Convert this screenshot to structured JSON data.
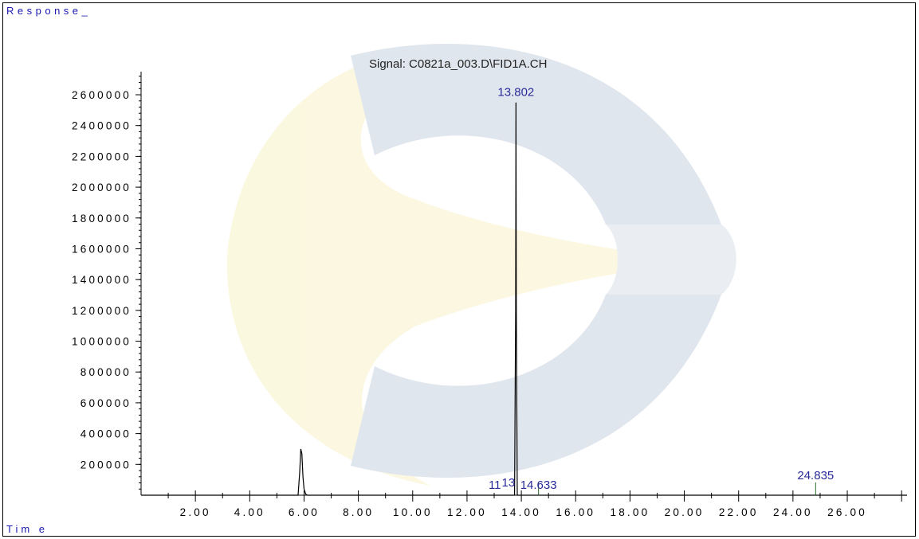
{
  "chart_data": {
    "type": "line",
    "title": "Signal: C0821a_003.D\\FID1A.CH",
    "ylabel": "Response_",
    "xlabel": "Tim e",
    "xlim": [
      0,
      28.2
    ],
    "ylim": [
      0,
      2750000
    ],
    "x_ticks": [
      2,
      4,
      6,
      8,
      10,
      12,
      14,
      16,
      18,
      20,
      22,
      24,
      26
    ],
    "x_tick_labels": [
      "2.00",
      "4.00",
      "6.00",
      "8.00",
      "10.00",
      "12.00",
      "14.00",
      "16.00",
      "18.00",
      "20.00",
      "22.00",
      "24.00",
      "26.00"
    ],
    "y_ticks": [
      200000,
      400000,
      600000,
      800000,
      1000000,
      1200000,
      1400000,
      1600000,
      1800000,
      2000000,
      2200000,
      2400000,
      2600000
    ],
    "series": [
      {
        "x": [
          0,
          5.78,
          5.84,
          5.88,
          5.92,
          5.96,
          6.0,
          6.06,
          6.12,
          13.75,
          13.79,
          13.802,
          13.815,
          13.85,
          14.633,
          24.835,
          28.2
        ],
        "y": [
          0,
          0,
          150000,
          300000,
          270000,
          120000,
          40000,
          8000,
          0,
          0,
          1200000,
          2550000,
          1200000,
          0,
          0,
          0,
          0
        ]
      }
    ],
    "peaks": [
      {
        "rt": 13.802,
        "label": "13.802",
        "height": 2550000
      },
      {
        "rt": 14.633,
        "label": "14.633",
        "height": 0
      },
      {
        "rt": 24.835,
        "label": "24.835",
        "height": 0
      }
    ],
    "cluster_labels": [
      "11",
      "13"
    ],
    "grid": false,
    "legend": "none"
  }
}
